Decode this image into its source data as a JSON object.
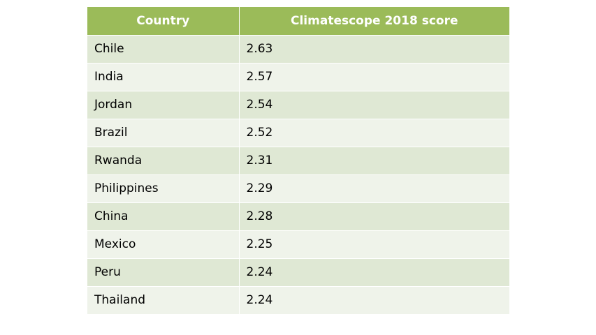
{
  "table": {
    "header": [
      "Country",
      "Climatescope 2018 score"
    ],
    "rows": [
      [
        "Chile",
        2.63
      ],
      [
        "India",
        2.57
      ],
      [
        "Jordan",
        2.54
      ],
      [
        "Brazil",
        2.52
      ],
      [
        "Rwanda",
        2.31
      ],
      [
        "Philippines",
        2.29
      ],
      [
        "China",
        2.28
      ],
      [
        "Mexico",
        2.25
      ],
      [
        "Peru",
        2.24
      ],
      [
        "Thailand",
        2.24
      ]
    ]
  }
}
